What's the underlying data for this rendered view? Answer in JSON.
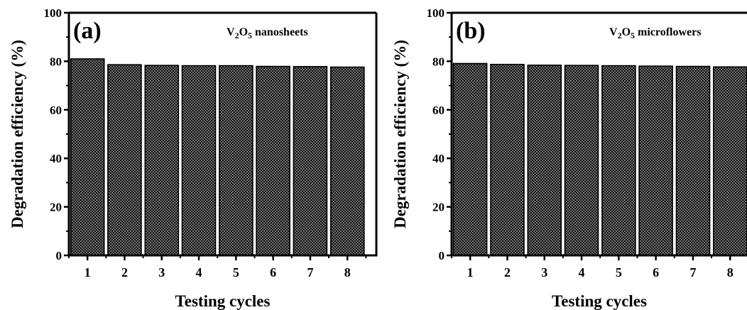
{
  "chart_data": [
    {
      "type": "bar",
      "panel_label": "(a)",
      "annotation": {
        "pre": "V",
        "sub1": "2",
        "mid": "O",
        "sub2": "5",
        "post": " nanosheets"
      },
      "xlabel": "Testing cycles",
      "ylabel": "Degradation efficiency (%)",
      "categories": [
        "1",
        "2",
        "3",
        "4",
        "5",
        "6",
        "7",
        "8"
      ],
      "values": [
        81,
        78.6,
        78.3,
        78.2,
        78.2,
        77.9,
        77.8,
        77.6
      ],
      "ylim": [
        0,
        100
      ],
      "yticks": [
        "0",
        "20",
        "40",
        "60",
        "80",
        "100"
      ],
      "bar_fill": "crosshatch-dark",
      "grid": false
    },
    {
      "type": "bar",
      "panel_label": "(b)",
      "annotation": {
        "pre": "V",
        "sub1": "2",
        "mid": "O",
        "sub2": "5",
        "post": " microflowers"
      },
      "xlabel": "Testing cycles",
      "ylabel": "Degradation efficiency (%)",
      "categories": [
        "1",
        "2",
        "3",
        "4",
        "5",
        "6",
        "7",
        "8"
      ],
      "values": [
        79.1,
        78.7,
        78.4,
        78.3,
        78.2,
        78.0,
        77.9,
        77.7
      ],
      "ylim": [
        0,
        100
      ],
      "yticks": [
        "0",
        "20",
        "40",
        "60",
        "80",
        "100"
      ],
      "bar_fill": "crosshatch-dark",
      "grid": false
    }
  ]
}
